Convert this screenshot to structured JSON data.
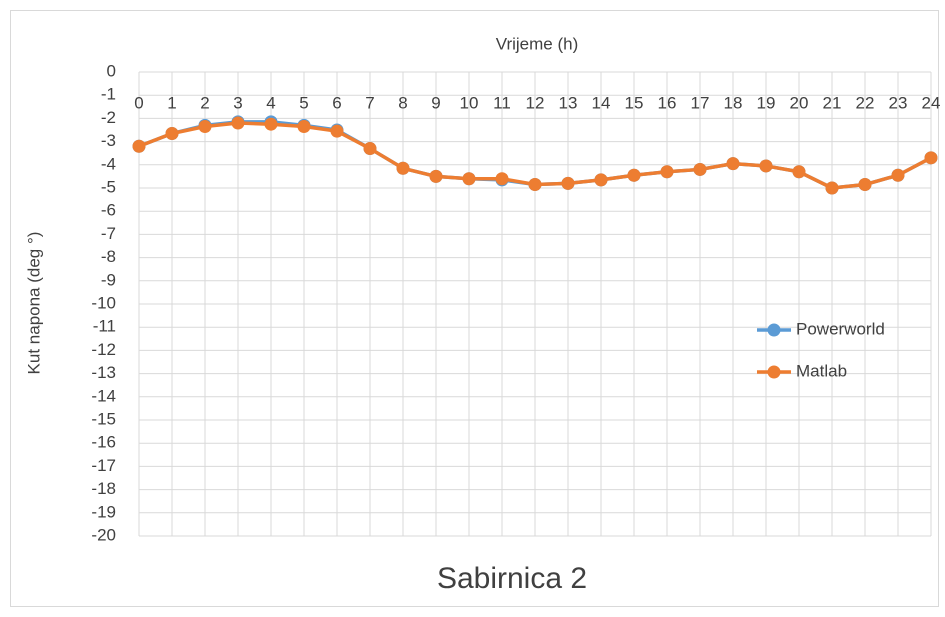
{
  "chart_data": {
    "type": "line",
    "title": "Vrijeme (h)",
    "subtitle": "Sabirnica 2",
    "y_label": "Kut napona (deg °)",
    "x": [
      0,
      1,
      2,
      3,
      4,
      5,
      6,
      7,
      8,
      9,
      10,
      11,
      12,
      13,
      14,
      15,
      16,
      17,
      18,
      19,
      20,
      21,
      22,
      23,
      24
    ],
    "series": [
      {
        "name": "Powerworld",
        "color": "#5b9bd5",
        "values": [
          -3.2,
          -2.65,
          -2.3,
          -2.15,
          -2.15,
          -2.3,
          -2.5,
          -3.3,
          -4.15,
          -4.5,
          -4.6,
          -4.65,
          -4.85,
          -4.8,
          -4.65,
          -4.45,
          -4.3,
          -4.2,
          -3.95,
          -4.05,
          -4.3,
          -5.0,
          -4.85,
          -4.45,
          -3.7
        ]
      },
      {
        "name": "Matlab",
        "color": "#ed7d31",
        "values": [
          -3.2,
          -2.65,
          -2.35,
          -2.2,
          -2.25,
          -2.35,
          -2.55,
          -3.3,
          -4.15,
          -4.5,
          -4.6,
          -4.6,
          -4.85,
          -4.8,
          -4.65,
          -4.45,
          -4.3,
          -4.2,
          -3.95,
          -4.05,
          -4.3,
          -5.0,
          -4.85,
          -4.45,
          -3.7
        ]
      }
    ],
    "xlim": [
      0,
      24
    ],
    "xticks": [
      0,
      1,
      2,
      3,
      4,
      5,
      6,
      7,
      8,
      9,
      10,
      11,
      12,
      13,
      14,
      15,
      16,
      17,
      18,
      19,
      20,
      21,
      22,
      23,
      24
    ],
    "ylim": [
      -20,
      0
    ],
    "yticks": [
      0,
      -1,
      -2,
      -3,
      -4,
      -5,
      -6,
      -7,
      -8,
      -9,
      -10,
      -11,
      -12,
      -13,
      -14,
      -15,
      -16,
      -17,
      -18,
      -19,
      -20
    ],
    "grid": true,
    "legend": "right"
  }
}
